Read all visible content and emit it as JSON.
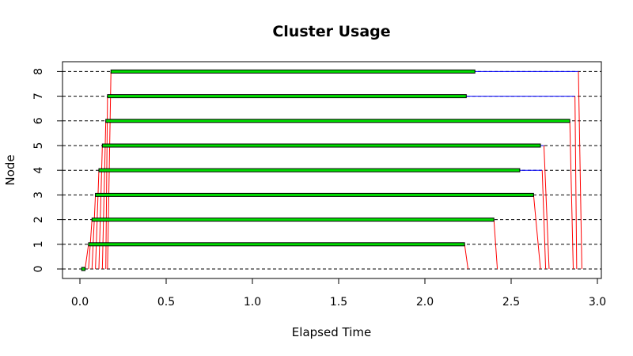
{
  "chart_data": {
    "type": "timeline",
    "title": "Cluster Usage",
    "xlabel": "Elapsed Time",
    "ylabel": "Node",
    "xlim": [
      -0.1,
      3.0
    ],
    "ylim": [
      -0.35,
      8.35
    ],
    "x_ticks": [
      "0.0",
      "0.5",
      "1.0",
      "1.5",
      "2.0",
      "2.5",
      "3.0"
    ],
    "y_ticks": [
      "0",
      "1",
      "2",
      "3",
      "4",
      "5",
      "6",
      "7",
      "8"
    ],
    "grid": "dashed horizontal lines at each node",
    "colors": {
      "bar_fill": "#00dd00",
      "bar_border": "#000000",
      "send_line": "#ff0000",
      "wait_line": "#0000ff",
      "grid_line": "#000000"
    },
    "master_task": {
      "node": 0,
      "start": 0.01,
      "end": 0.03
    },
    "tasks": [
      {
        "node": 1,
        "sent": 0.03,
        "start": 0.05,
        "end": 2.23,
        "wait_end": 2.23,
        "return": 2.25
      },
      {
        "node": 2,
        "sent": 0.05,
        "start": 0.07,
        "end": 2.4,
        "wait_end": 2.4,
        "return": 2.42
      },
      {
        "node": 3,
        "sent": 0.07,
        "start": 0.09,
        "end": 2.63,
        "wait_end": 2.63,
        "return": 2.67
      },
      {
        "node": 4,
        "sent": 0.09,
        "start": 0.11,
        "end": 2.55,
        "wait_end": 2.68,
        "return": 2.7
      },
      {
        "node": 5,
        "sent": 0.11,
        "start": 0.13,
        "end": 2.67,
        "wait_end": 2.69,
        "return": 2.72
      },
      {
        "node": 6,
        "sent": 0.13,
        "start": 0.15,
        "end": 2.84,
        "wait_end": 2.84,
        "return": 2.86
      },
      {
        "node": 7,
        "sent": 0.15,
        "start": 0.16,
        "end": 2.24,
        "wait_end": 2.87,
        "return": 2.88
      },
      {
        "node": 8,
        "sent": 0.16,
        "start": 0.18,
        "end": 2.29,
        "wait_end": 2.89,
        "return": 2.91
      }
    ]
  }
}
